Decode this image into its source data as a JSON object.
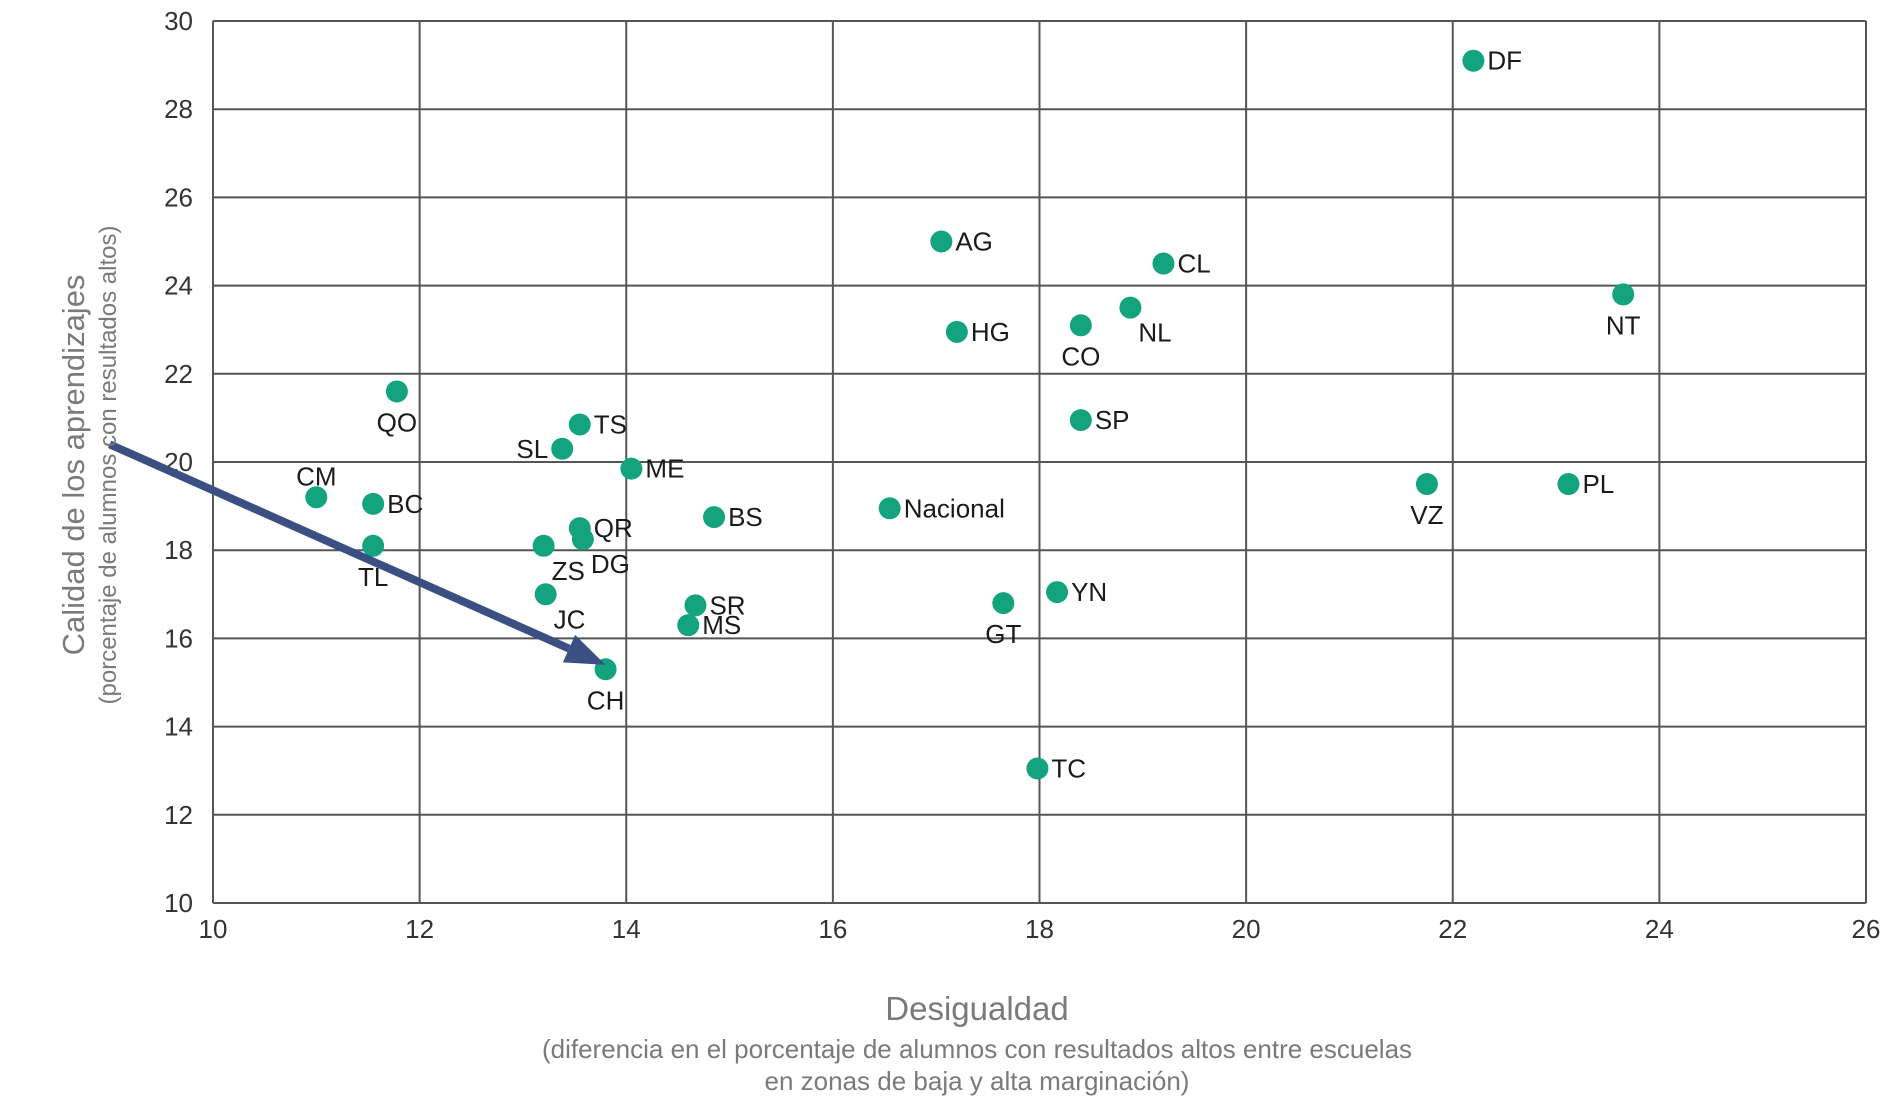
{
  "chart_data": {
    "type": "scatter",
    "xlabel": "Desigualdad",
    "xlabel_sub": [
      "(diferencia en el porcentaje de alumnos con resultados altos entre escuelas",
      "en zonas de baja y alta marginación)"
    ],
    "ylabel": "Calidad de los aprendizajes",
    "ylabel_sub": "(porcentaje de alumnos con resultados altos)",
    "xlim": [
      10,
      26
    ],
    "ylim": [
      10,
      30
    ],
    "xticks": [
      10,
      12,
      14,
      16,
      18,
      20,
      22,
      24,
      26
    ],
    "yticks": [
      10,
      12,
      14,
      16,
      18,
      20,
      22,
      24,
      26,
      28,
      30
    ],
    "grid": true,
    "marker_color": "#14a37f",
    "arrow_color": "#3c4f82",
    "arrow": {
      "from": [
        9.0,
        20.4
      ],
      "to": [
        13.8,
        15.4
      ]
    },
    "points": [
      {
        "label": "DF",
        "x": 22.2,
        "y": 29.1,
        "pos": "right"
      },
      {
        "label": "AG",
        "x": 17.05,
        "y": 25.0,
        "pos": "right"
      },
      {
        "label": "CL",
        "x": 19.2,
        "y": 24.5,
        "pos": "right"
      },
      {
        "label": "NT",
        "x": 23.65,
        "y": 23.8,
        "pos": "below"
      },
      {
        "label": "HG",
        "x": 17.2,
        "y": 22.95,
        "pos": "right"
      },
      {
        "label": "CO",
        "x": 18.4,
        "y": 23.1,
        "pos": "below"
      },
      {
        "label": "NL",
        "x": 18.88,
        "y": 23.5,
        "pos": "below-right"
      },
      {
        "label": "QO",
        "x": 11.78,
        "y": 21.6,
        "pos": "below"
      },
      {
        "label": "SP",
        "x": 18.4,
        "y": 20.95,
        "pos": "right"
      },
      {
        "label": "TS",
        "x": 13.55,
        "y": 20.85,
        "pos": "right"
      },
      {
        "label": "SL",
        "x": 13.38,
        "y": 20.3,
        "pos": "left"
      },
      {
        "label": "ME",
        "x": 14.05,
        "y": 19.85,
        "pos": "right"
      },
      {
        "label": "VZ",
        "x": 21.75,
        "y": 19.5,
        "pos": "below"
      },
      {
        "label": "PL",
        "x": 23.12,
        "y": 19.5,
        "pos": "right"
      },
      {
        "label": "CM",
        "x": 11.0,
        "y": 19.2,
        "pos": "above"
      },
      {
        "label": "BC",
        "x": 11.55,
        "y": 19.05,
        "pos": "right"
      },
      {
        "label": "Nacional",
        "x": 16.55,
        "y": 18.95,
        "pos": "right"
      },
      {
        "label": "BS",
        "x": 14.85,
        "y": 18.75,
        "pos": "right"
      },
      {
        "label": "QR",
        "x": 13.55,
        "y": 18.5,
        "pos": "right"
      },
      {
        "label": "DG",
        "x": 13.58,
        "y": 18.25,
        "pos": "below-right"
      },
      {
        "label": "ZS",
        "x": 13.2,
        "y": 18.1,
        "pos": "below-right"
      },
      {
        "label": "TL",
        "x": 11.55,
        "y": 18.1,
        "pos": "below"
      },
      {
        "label": "YN",
        "x": 18.17,
        "y": 17.05,
        "pos": "right"
      },
      {
        "label": "JC",
        "x": 13.22,
        "y": 17.0,
        "pos": "below-right"
      },
      {
        "label": "GT",
        "x": 17.65,
        "y": 16.8,
        "pos": "below"
      },
      {
        "label": "SR",
        "x": 14.67,
        "y": 16.75,
        "pos": "right"
      },
      {
        "label": "MS",
        "x": 14.6,
        "y": 16.3,
        "pos": "right"
      },
      {
        "label": "CH",
        "x": 13.8,
        "y": 15.3,
        "pos": "below"
      },
      {
        "label": "TC",
        "x": 17.98,
        "y": 13.05,
        "pos": "right"
      }
    ]
  }
}
